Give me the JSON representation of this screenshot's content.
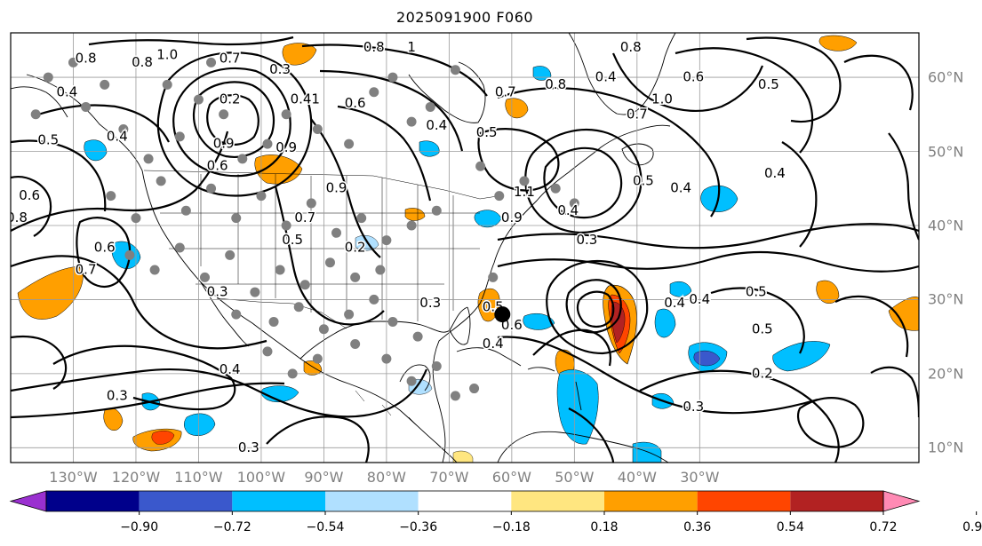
{
  "title": "2025091900 F060",
  "map": {
    "projection": "lat-lon",
    "lon_range": [
      -140,
      5
    ],
    "lat_range": [
      8,
      66
    ],
    "gridlines": true,
    "lon_ticks": [
      {
        "value": -130,
        "label": "130°W"
      },
      {
        "value": -120,
        "label": "120°W"
      },
      {
        "value": -110,
        "label": "110°W"
      },
      {
        "value": -100,
        "label": "100°W"
      },
      {
        "value": -90,
        "label": "90°W"
      },
      {
        "value": -80,
        "label": "80°W"
      },
      {
        "value": -70,
        "label": "70°W"
      },
      {
        "value": -60,
        "label": "60°W"
      },
      {
        "value": -50,
        "label": "50°W"
      },
      {
        "value": -40,
        "label": "40°W"
      },
      {
        "value": -30,
        "label": "30°W"
      }
    ],
    "lat_ticks": [
      {
        "value": 60,
        "label": "60°N"
      },
      {
        "value": 50,
        "label": "50°N"
      },
      {
        "value": 40,
        "label": "40°N"
      },
      {
        "value": 30,
        "label": "30°N"
      },
      {
        "value": 20,
        "label": "20°N"
      },
      {
        "value": 10,
        "label": "10°N"
      }
    ],
    "storm_center": {
      "lon": -61.5,
      "lat": 28
    },
    "contour_labels": [
      {
        "text": "0.8",
        "lon": -128,
        "lat": 62.5
      },
      {
        "text": "0.8",
        "lon": -119,
        "lat": 62
      },
      {
        "text": "1.0",
        "lon": -115,
        "lat": 63
      },
      {
        "text": "0.7",
        "lon": -105,
        "lat": 62.5
      },
      {
        "text": "0.4",
        "lon": -131,
        "lat": 58
      },
      {
        "text": "0.5",
        "lon": -134,
        "lat": 51.5
      },
      {
        "text": "0.4",
        "lon": -123,
        "lat": 52
      },
      {
        "text": "0.6",
        "lon": -137,
        "lat": 44
      },
      {
        "text": "0.8",
        "lon": -139,
        "lat": 41
      },
      {
        "text": "0.6",
        "lon": -125,
        "lat": 37
      },
      {
        "text": "0.7",
        "lon": -128,
        "lat": 34
      },
      {
        "text": "0.3",
        "lon": -97,
        "lat": 61
      },
      {
        "text": "0.41",
        "lon": -93,
        "lat": 57
      },
      {
        "text": "0.6",
        "lon": -85,
        "lat": 56.5
      },
      {
        "text": "0.8",
        "lon": -82,
        "lat": 64
      },
      {
        "text": "1",
        "lon": -76,
        "lat": 64
      },
      {
        "text": "0.4",
        "lon": -72,
        "lat": 53.5
      },
      {
        "text": "0.5",
        "lon": -64,
        "lat": 52.5
      },
      {
        "text": "0.7",
        "lon": -61,
        "lat": 58
      },
      {
        "text": "0.8",
        "lon": -53,
        "lat": 59
      },
      {
        "text": "0.4",
        "lon": -45,
        "lat": 60
      },
      {
        "text": "0.8",
        "lon": -41,
        "lat": 64
      },
      {
        "text": "0.7",
        "lon": -40,
        "lat": 55
      },
      {
        "text": "1.0",
        "lon": -36,
        "lat": 57
      },
      {
        "text": "0.6",
        "lon": -31,
        "lat": 60
      },
      {
        "text": "0.5",
        "lon": -19,
        "lat": 59
      },
      {
        "text": "0.5",
        "lon": -39,
        "lat": 46
      },
      {
        "text": "0.4",
        "lon": -33,
        "lat": 45
      },
      {
        "text": "0.4",
        "lon": -51,
        "lat": 42
      },
      {
        "text": "0.3",
        "lon": -48,
        "lat": 38
      },
      {
        "text": "0.4",
        "lon": -18,
        "lat": 47
      },
      {
        "text": "0.9",
        "lon": -96,
        "lat": 50.5
      },
      {
        "text": "0.9",
        "lon": -106,
        "lat": 51
      },
      {
        "text": "0.2",
        "lon": -105,
        "lat": 57
      },
      {
        "text": "0.6",
        "lon": -107,
        "lat": 48
      },
      {
        "text": "0.9",
        "lon": -88,
        "lat": 45
      },
      {
        "text": "0.7",
        "lon": -93,
        "lat": 41
      },
      {
        "text": "0.5",
        "lon": -95,
        "lat": 38
      },
      {
        "text": "0.2",
        "lon": -85,
        "lat": 37
      },
      {
        "text": "0.3",
        "lon": -107,
        "lat": 31
      },
      {
        "text": "0.3",
        "lon": -73,
        "lat": 29.5
      },
      {
        "text": "0.5",
        "lon": -63,
        "lat": 29
      },
      {
        "text": "0.6",
        "lon": -60,
        "lat": 26.5
      },
      {
        "text": "0.4",
        "lon": -63,
        "lat": 24
      },
      {
        "text": "0.4",
        "lon": -105,
        "lat": 20.5
      },
      {
        "text": "0.3",
        "lon": -123,
        "lat": 17
      },
      {
        "text": "0.3",
        "lon": -102,
        "lat": 10
      },
      {
        "text": "0.4",
        "lon": -34,
        "lat": 29.5
      },
      {
        "text": "0.4",
        "lon": -30,
        "lat": 30
      },
      {
        "text": "0.5",
        "lon": -20,
        "lat": 26
      },
      {
        "text": "0.5",
        "lon": -21,
        "lat": 31
      },
      {
        "text": "0.2",
        "lon": -20,
        "lat": 20
      },
      {
        "text": "0.3",
        "lon": -31,
        "lat": 15.5
      },
      {
        "text": "0.9",
        "lon": -60,
        "lat": 41
      },
      {
        "text": "1.1",
        "lon": -58,
        "lat": 44.5
      }
    ]
  },
  "colorbar": {
    "colors": [
      "#9a30d0",
      "#00008b",
      "#3a58cc",
      "#00bfff",
      "#b0e0ff",
      "#ffffff",
      "#ffe680",
      "#ff9f00",
      "#ff4500",
      "#b22222",
      "#ff8ab4"
    ],
    "tick_labels": [
      "−0.90",
      "−0.72",
      "−0.54",
      "−0.36",
      "−0.18",
      "0.18",
      "0.36",
      "0.54",
      "0.72",
      "0.90"
    ]
  }
}
